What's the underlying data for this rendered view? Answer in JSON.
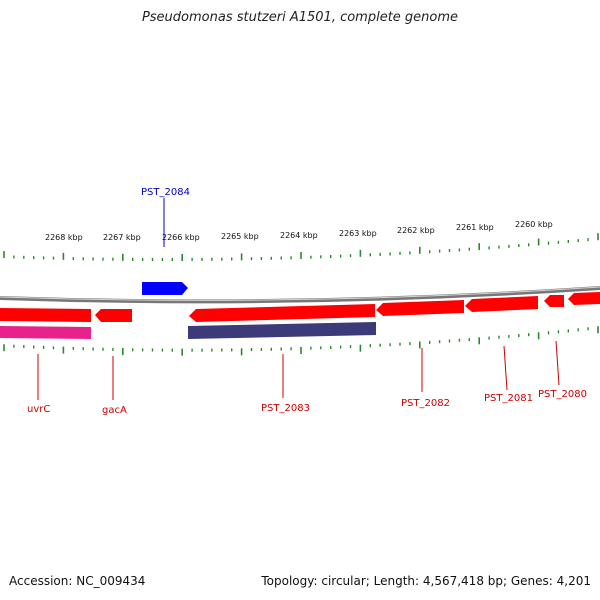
{
  "title": "Pseudomonas stutzeri A1501, complete genome",
  "footer": {
    "accession": "Accession: NC_009434",
    "summary": "Topology: circular; Length: 4,567,418 bp; Genes: 4,201"
  },
  "colors": {
    "backbone": "#8a8a8a",
    "forward_cds": "#0000ff",
    "reverse_cds": "#ff0000",
    "rna": "#e8228a",
    "feature_band": "#3d3a7a",
    "tick": "#2a8a2a",
    "label_reverse": "#cc0000",
    "label_forward": "#0000cc"
  },
  "scale_labels": [
    "2268 kbp",
    "2267 kbp",
    "2266 kbp",
    "2265 kbp",
    "2264 kbp",
    "2263 kbp",
    "2262 kbp",
    "2261 kbp",
    "2260 kbp"
  ],
  "gene_labels_forward": [
    "PST_2084"
  ],
  "gene_labels_reverse": [
    "uvrC",
    "gacA",
    "PST_2083",
    "PST_2082",
    "PST_2081",
    "PST_2080"
  ]
}
